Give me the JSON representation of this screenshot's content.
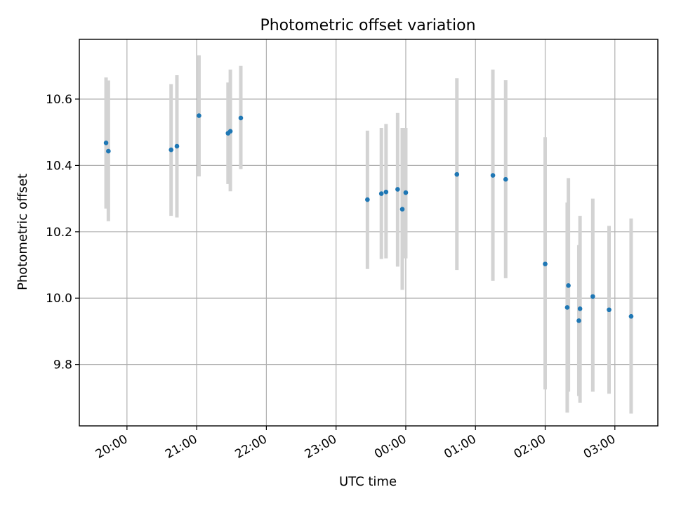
{
  "chart_data": {
    "type": "scatter",
    "title": "Photometric offset variation",
    "xlabel": "UTC time",
    "ylabel": "Photometric offset",
    "x_ticks": [
      "20:00",
      "21:00",
      "22:00",
      "23:00",
      "00:00",
      "01:00",
      "02:00",
      "03:00"
    ],
    "y_ticks": [
      "9.8",
      "10.0",
      "10.2",
      "10.4",
      "10.6"
    ],
    "xlim": [
      "19:19",
      "03:37"
    ],
    "ylim": [
      9.615,
      10.78
    ],
    "grid": true,
    "colors": {
      "points": "#1f77b4",
      "errorbars": "#d3d3d3"
    },
    "points": [
      {
        "x": "19:42",
        "y": 10.468,
        "lo": 10.27,
        "hi": 10.665
      },
      {
        "x": "19:44",
        "y": 10.443,
        "lo": 10.232,
        "hi": 10.656
      },
      {
        "x": "20:38",
        "y": 10.447,
        "lo": 10.248,
        "hi": 10.645
      },
      {
        "x": "20:43",
        "y": 10.458,
        "lo": 10.243,
        "hi": 10.672
      },
      {
        "x": "21:02",
        "y": 10.55,
        "lo": 10.367,
        "hi": 10.732
      },
      {
        "x": "21:27",
        "y": 10.497,
        "lo": 10.344,
        "hi": 10.65
      },
      {
        "x": "21:29",
        "y": 10.503,
        "lo": 10.322,
        "hi": 10.689
      },
      {
        "x": "21:38",
        "y": 10.543,
        "lo": 10.389,
        "hi": 10.7
      },
      {
        "x": "23:27",
        "y": 10.297,
        "lo": 10.088,
        "hi": 10.505
      },
      {
        "x": "23:39",
        "y": 10.315,
        "lo": 10.118,
        "hi": 10.513
      },
      {
        "x": "23:43",
        "y": 10.32,
        "lo": 10.12,
        "hi": 10.525
      },
      {
        "x": "23:53",
        "y": 10.328,
        "lo": 10.095,
        "hi": 10.558
      },
      {
        "x": "23:57",
        "y": 10.268,
        "lo": 10.025,
        "hi": 10.513
      },
      {
        "x": "00:00",
        "y": 10.318,
        "lo": 10.12,
        "hi": 10.513
      },
      {
        "x": "00:44",
        "y": 10.373,
        "lo": 10.085,
        "hi": 10.663
      },
      {
        "x": "01:15",
        "y": 10.37,
        "lo": 10.052,
        "hi": 10.689
      },
      {
        "x": "01:26",
        "y": 10.358,
        "lo": 10.06,
        "hi": 10.657
      },
      {
        "x": "02:00",
        "y": 10.103,
        "lo": 9.725,
        "hi": 10.485
      },
      {
        "x": "02:19",
        "y": 9.972,
        "lo": 9.655,
        "hi": 10.288
      },
      {
        "x": "02:20",
        "y": 10.038,
        "lo": 9.718,
        "hi": 10.362
      },
      {
        "x": "02:29",
        "y": 9.932,
        "lo": 9.705,
        "hi": 10.16
      },
      {
        "x": "02:30",
        "y": 9.968,
        "lo": 9.685,
        "hi": 10.248
      },
      {
        "x": "02:41",
        "y": 10.005,
        "lo": 9.718,
        "hi": 10.3
      },
      {
        "x": "02:55",
        "y": 9.965,
        "lo": 9.712,
        "hi": 10.218
      },
      {
        "x": "03:14",
        "y": 9.945,
        "lo": 9.652,
        "hi": 10.24
      }
    ]
  }
}
